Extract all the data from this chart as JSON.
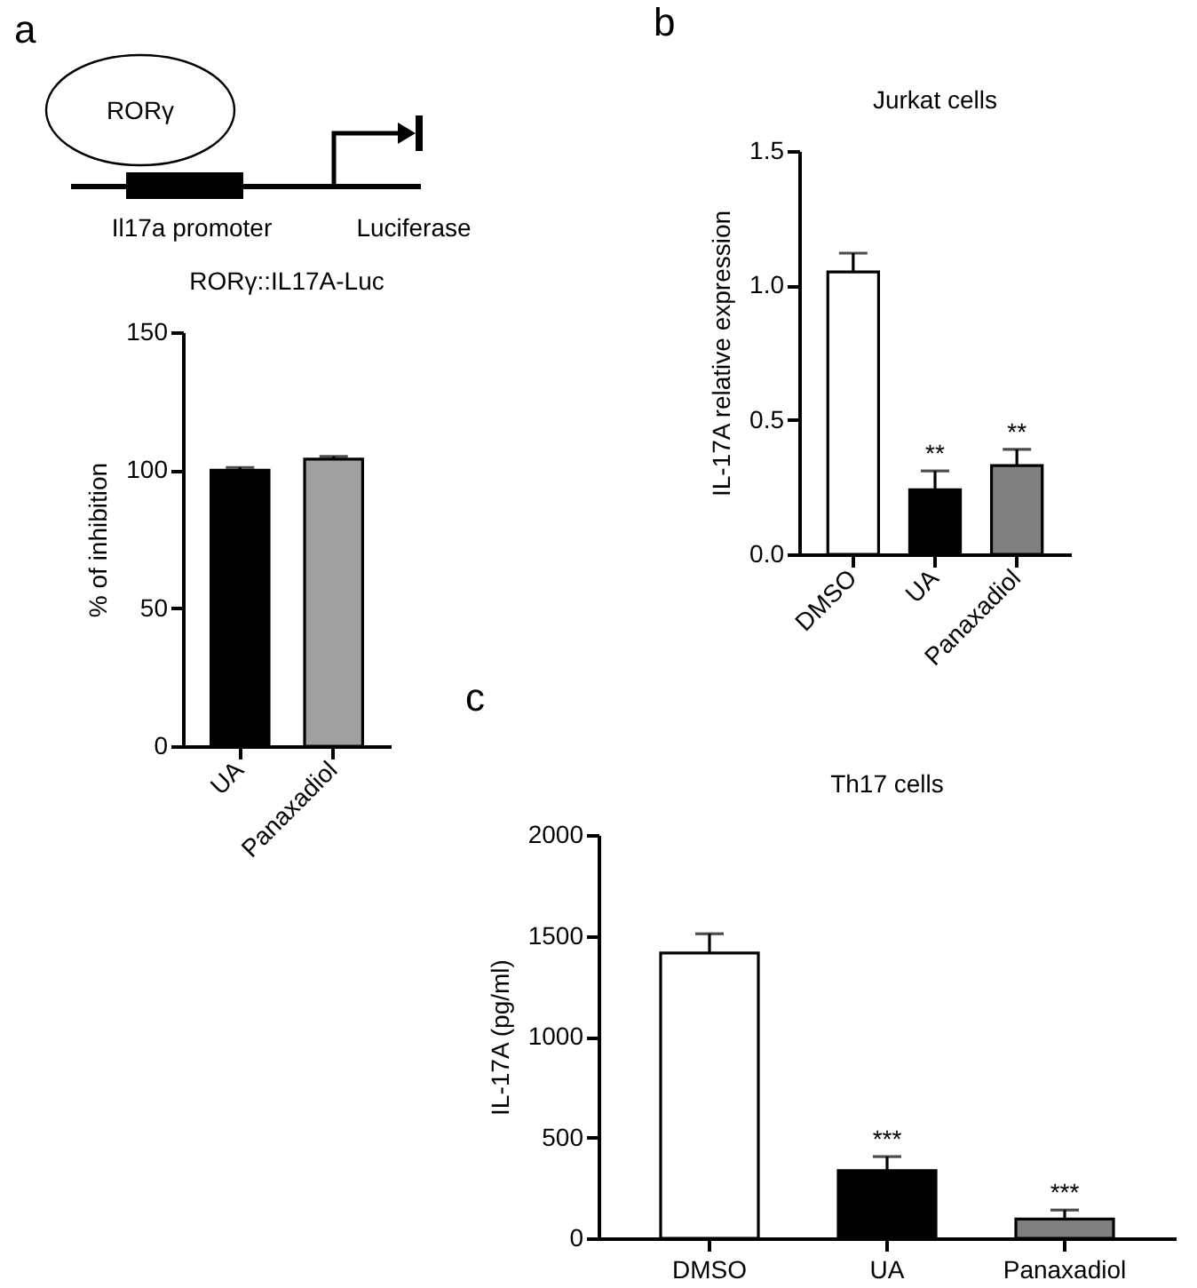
{
  "chart_data": [
    {
      "type": "bar",
      "title": "RORγ::IL17A-Luc",
      "ylabel": "% of inhibition",
      "categories": [
        "UA",
        "Panaxadiol"
      ],
      "values": [
        100,
        104
      ],
      "colors": [
        "#000000",
        "#a0a0a0"
      ],
      "errors": [
        1,
        1
      ],
      "ylim": [
        0,
        150
      ],
      "yticks": [
        0,
        50,
        100,
        150
      ],
      "grid": false,
      "legend": false,
      "annotations": [
        "a",
        "RORγ",
        "Il17a promoter",
        "Luciferase"
      ]
    },
    {
      "type": "bar",
      "title": "Jurkat cells",
      "ylabel": "IL-17A relative expression",
      "categories": [
        "DMSO",
        "UA",
        "Panaxadiol"
      ],
      "values": [
        1.05,
        0.24,
        0.33
      ],
      "colors": [
        "#ffffff",
        "#000000",
        "#808080"
      ],
      "errors": [
        0.07,
        0.07,
        0.06
      ],
      "ylim": [
        0,
        1.5
      ],
      "yticks": [
        {
          "value": 0,
          "label": "0.0"
        },
        0.5,
        {
          "value": 1,
          "label": "1.0"
        },
        1.5
      ],
      "grid": false,
      "legend": false,
      "annotations": [
        "b",
        {
          "text": "**",
          "x": "UA",
          "y": 0.31
        },
        {
          "text": "**",
          "x": "Panaxadiol",
          "y": 0.39
        }
      ]
    },
    {
      "type": "bar",
      "title": "Th17 cells",
      "ylabel": "IL-17A (pg/ml)",
      "categories": [
        "DMSO",
        "UA",
        "Panaxadiol"
      ],
      "values": [
        1415,
        335,
        95
      ],
      "colors": [
        "#ffffff",
        "#000000",
        "#808080"
      ],
      "errors": [
        95,
        70,
        45
      ],
      "ylim": [
        0,
        2000
      ],
      "yticks": [
        0,
        500,
        1000,
        1500,
        2000
      ],
      "grid": false,
      "legend": false,
      "annotations": [
        "c",
        {
          "text": "***",
          "x": "UA",
          "y": 405
        },
        {
          "text": "***",
          "x": "Panaxadiol",
          "y": 140
        }
      ]
    }
  ]
}
